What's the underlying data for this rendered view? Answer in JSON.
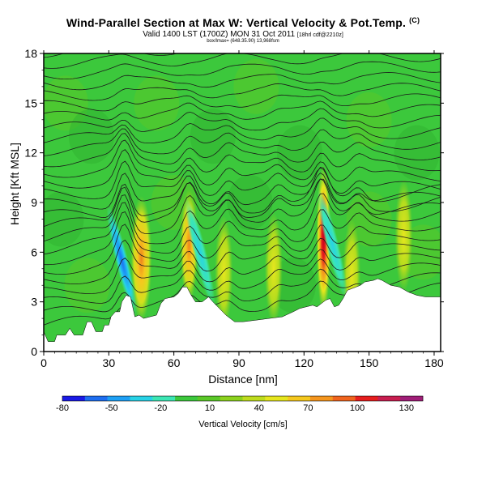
{
  "chart_data": {
    "type": "heatmap",
    "title": "Wind-Parallel Section at Max W: Vertical Velocity & Pot.Temp.",
    "title_mark": "(C)",
    "subtitle": "Valid 1400 LST (1700Z) MON 31 Oct 2011",
    "subtitle_small": "[18hrl cdf@2210z]",
    "subtitle2": "box/lmax= (648.35.90) 13,968fsm",
    "xlabel": "Distance [nm]",
    "ylabel": "Height [Kft MSL]",
    "xlim": [
      0,
      183
    ],
    "ylim": [
      0,
      18
    ],
    "xticks": [
      0,
      30,
      60,
      90,
      120,
      150,
      180
    ],
    "yticks": [
      0,
      3,
      6,
      9,
      12,
      15,
      18
    ],
    "colorbar": {
      "label": "Vertical Velocity [cm/s]",
      "tick_values": [
        -80,
        -50,
        -20,
        10,
        40,
        70,
        100,
        130
      ],
      "range": [
        -80,
        140
      ],
      "colors": [
        "#1a1ae6",
        "#1e6ef0",
        "#1ea0f5",
        "#28d2e6",
        "#3ce6b4",
        "#3cc83c",
        "#5ac828",
        "#8cd21e",
        "#bedc1e",
        "#e6e61e",
        "#f5c81e",
        "#f5961e",
        "#f0641e",
        "#e61e1e",
        "#c81e50",
        "#a01e78"
      ]
    },
    "terrain_kft": [
      [
        0,
        1.2
      ],
      [
        2,
        0.6
      ],
      [
        5,
        0.6
      ],
      [
        6,
        1.0
      ],
      [
        10,
        1.0
      ],
      [
        12,
        1.4
      ],
      [
        14,
        1.0
      ],
      [
        18,
        1.0
      ],
      [
        20,
        1.8
      ],
      [
        22,
        1.8
      ],
      [
        24,
        1.2
      ],
      [
        27,
        1.2
      ],
      [
        28,
        1.6
      ],
      [
        30,
        1.6
      ],
      [
        31,
        2.1
      ],
      [
        33,
        2.4
      ],
      [
        35,
        2.4
      ],
      [
        36,
        3.0
      ],
      [
        38,
        3.4
      ],
      [
        40,
        3.3
      ],
      [
        42,
        2.1
      ],
      [
        44,
        2.2
      ],
      [
        46,
        2.0
      ],
      [
        49,
        2.1
      ],
      [
        52,
        2.2
      ],
      [
        54,
        2.9
      ],
      [
        56,
        3.2
      ],
      [
        60,
        3.3
      ],
      [
        62,
        3.5
      ],
      [
        64,
        3.9
      ],
      [
        66,
        3.9
      ],
      [
        68,
        3.4
      ],
      [
        70,
        3.0
      ],
      [
        73,
        3.0
      ],
      [
        76,
        3.3
      ],
      [
        78,
        3.0
      ],
      [
        81,
        2.6
      ],
      [
        84,
        2.2
      ],
      [
        88,
        1.8
      ],
      [
        92,
        1.8
      ],
      [
        98,
        1.9
      ],
      [
        104,
        2.0
      ],
      [
        110,
        2.1
      ],
      [
        115,
        2.4
      ],
      [
        118,
        2.6
      ],
      [
        121,
        2.7
      ],
      [
        124,
        2.8
      ],
      [
        126,
        2.7
      ],
      [
        128,
        2.9
      ],
      [
        130,
        3.1
      ],
      [
        132,
        3.2
      ],
      [
        134,
        2.7
      ],
      [
        136,
        2.8
      ],
      [
        138,
        3.2
      ],
      [
        140,
        3.7
      ],
      [
        144,
        3.9
      ],
      [
        146,
        4.0
      ],
      [
        148,
        4.2
      ],
      [
        152,
        4.3
      ],
      [
        154,
        4.4
      ],
      [
        156,
        4.3
      ],
      [
        160,
        4.0
      ],
      [
        164,
        3.9
      ],
      [
        168,
        3.6
      ],
      [
        172,
        3.4
      ],
      [
        176,
        3.3
      ],
      [
        180,
        3.3
      ],
      [
        183,
        3.3
      ]
    ],
    "updrafts": [
      {
        "x": 129,
        "z_center": 6.8,
        "peak_cm_s": 125
      },
      {
        "x": 45,
        "z_center": 5.6,
        "peak_cm_s": 60
      },
      {
        "x": 67,
        "z_center": 6.4,
        "peak_cm_s": 45
      },
      {
        "x": 83,
        "z_center": 4.8,
        "peak_cm_s": 30
      },
      {
        "x": 106,
        "z_center": 5.0,
        "peak_cm_s": 30
      },
      {
        "x": 142,
        "z_center": 4.6,
        "peak_cm_s": 30
      },
      {
        "x": 166,
        "z_center": 7.0,
        "peak_cm_s": 35
      }
    ],
    "downdrafts": [
      {
        "x": 36,
        "z_center": 5.5,
        "peak_cm_s": -60
      },
      {
        "x": 72,
        "z_center": 6.0,
        "peak_cm_s": -20
      },
      {
        "x": 133,
        "z_center": 6.5,
        "peak_cm_s": -20
      }
    ],
    "theta_contour_count": 26
  }
}
